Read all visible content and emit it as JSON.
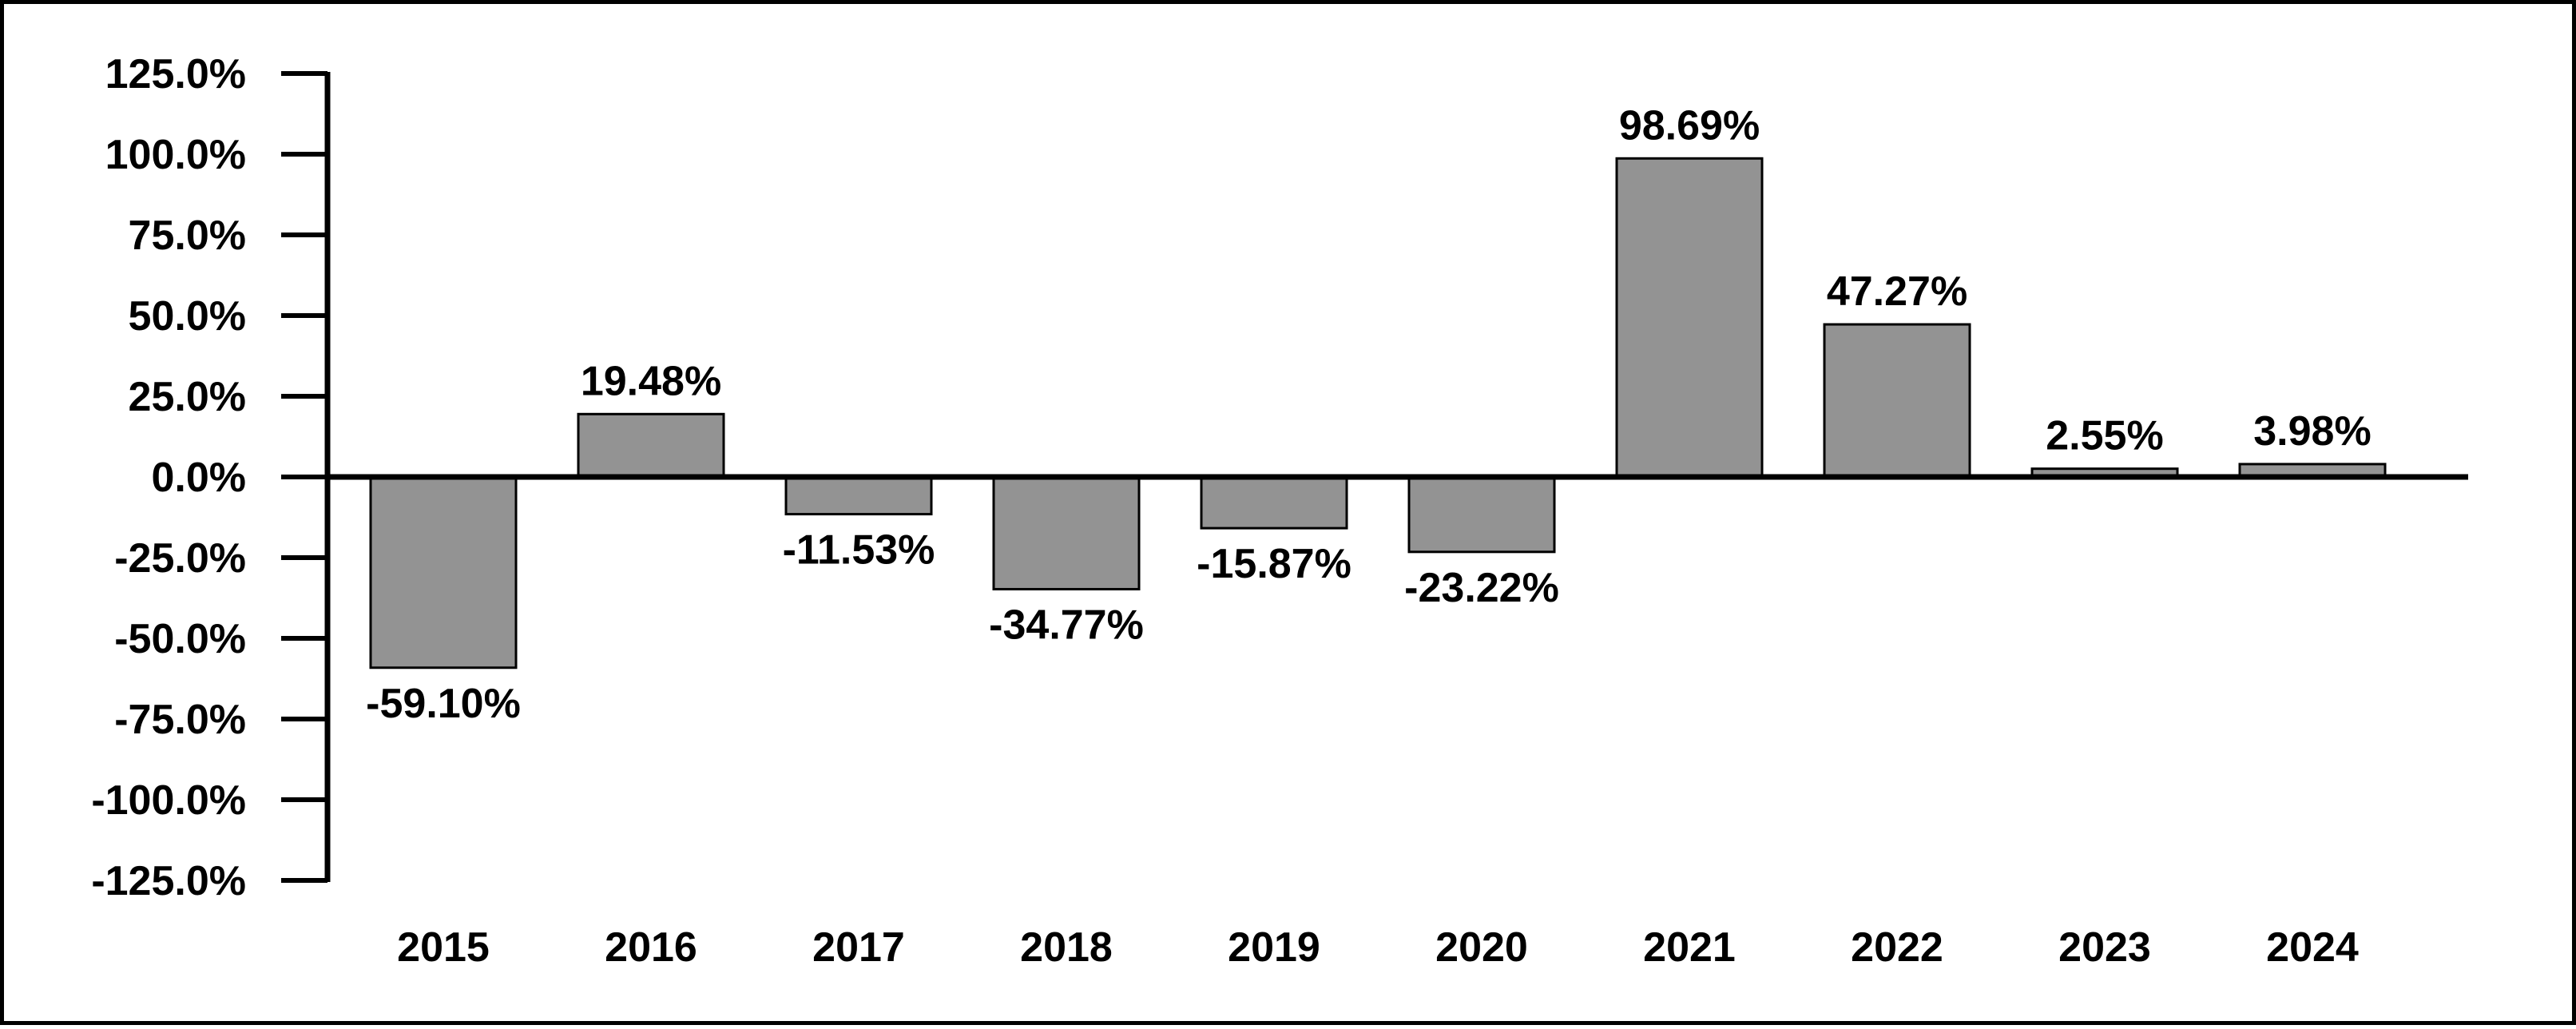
{
  "chart_data": {
    "type": "bar",
    "categories": [
      "2015",
      "2016",
      "2017",
      "2018",
      "2019",
      "2020",
      "2021",
      "2022",
      "2023",
      "2024"
    ],
    "values": [
      -59.1,
      19.48,
      -11.53,
      -34.77,
      -15.87,
      -23.22,
      98.69,
      47.27,
      2.55,
      3.98
    ],
    "value_labels": [
      "-59.10%",
      "19.48%",
      "-11.53%",
      "-34.77%",
      "-15.87%",
      "-23.22%",
      "98.69%",
      "47.27%",
      "2.55%",
      "3.98%"
    ],
    "ylim": [
      -125,
      125
    ],
    "yticks": [
      125,
      100,
      75,
      50,
      25,
      0,
      -25,
      -50,
      -75,
      -100,
      -125
    ],
    "ytick_labels": [
      "125.0%",
      "100.0%",
      "75.0%",
      "50.0%",
      "25.0%",
      "0.0%",
      "-25.0%",
      "-50.0%",
      "-75.0%",
      "-100.0%",
      "-125.0%"
    ],
    "title": "",
    "xlabel": "",
    "ylabel": "",
    "grid": false,
    "colors": {
      "bar_fill": "#939393",
      "bar_stroke": "#000000",
      "axis": "#000000",
      "text": "#000000"
    }
  }
}
